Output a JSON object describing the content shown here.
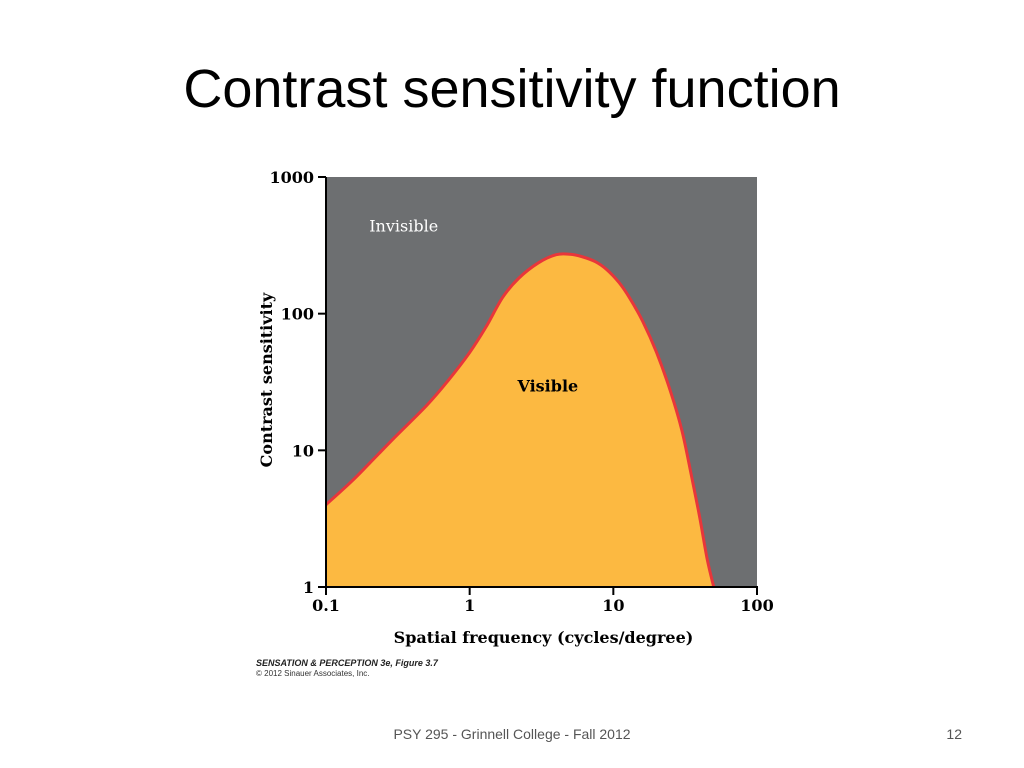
{
  "slide": {
    "title": "Contrast sensitivity function",
    "footer": "PSY 295 - Grinnell College - Fall 2012",
    "page_number": "12"
  },
  "credit": {
    "title": "SENSATION & PERCEPTION 3e, Figure 3.7",
    "copyright": "© 2012 Sinauer Associates, Inc."
  },
  "colors": {
    "invisible_region": "#6d6f71",
    "visible_region": "#fcb941",
    "curve": "#e8363a",
    "axis": "#000000"
  },
  "chart_data": {
    "type": "area",
    "title": "",
    "xlabel": "Spatial frequency (cycles/degree)",
    "ylabel": "Contrast sensitivity",
    "xscale": "log",
    "yscale": "log",
    "xlim": [
      0.1,
      100
    ],
    "ylim": [
      1,
      1000
    ],
    "x_ticks": [
      {
        "value": 0.1,
        "label": "0.1"
      },
      {
        "value": 1,
        "label": "1"
      },
      {
        "value": 10,
        "label": "10"
      },
      {
        "value": 100,
        "label": "100"
      }
    ],
    "y_ticks": [
      {
        "value": 1,
        "label": "1"
      },
      {
        "value": 10,
        "label": "10"
      },
      {
        "value": 100,
        "label": "100"
      },
      {
        "value": 1000,
        "label": "1000"
      }
    ],
    "annotations": [
      {
        "text": "Invisible",
        "x": 0.2,
        "y": 400
      },
      {
        "text": "Visible",
        "x": 3.5,
        "y": 27
      }
    ],
    "series": [
      {
        "x": [
          0.1,
          0.15,
          0.2,
          0.3,
          0.5,
          0.7,
          1.0,
          1.3,
          1.7,
          2.2,
          3.0,
          4.0,
          5.0,
          6.0,
          7.5,
          9.0,
          11.0,
          13.0,
          16.0,
          20.0,
          25.0,
          30.0,
          35.0,
          40.0,
          45.0,
          50.0
        ],
        "y": [
          4.0,
          5.9,
          8.0,
          12.4,
          21.2,
          31.9,
          52.0,
          80.0,
          132.0,
          182.0,
          235.0,
          270.0,
          272.0,
          262.0,
          240.0,
          210.0,
          168.0,
          130.0,
          88.0,
          52.0,
          27.0,
          14.0,
          6.5,
          3.2,
          1.6,
          1.0
        ]
      }
    ]
  }
}
